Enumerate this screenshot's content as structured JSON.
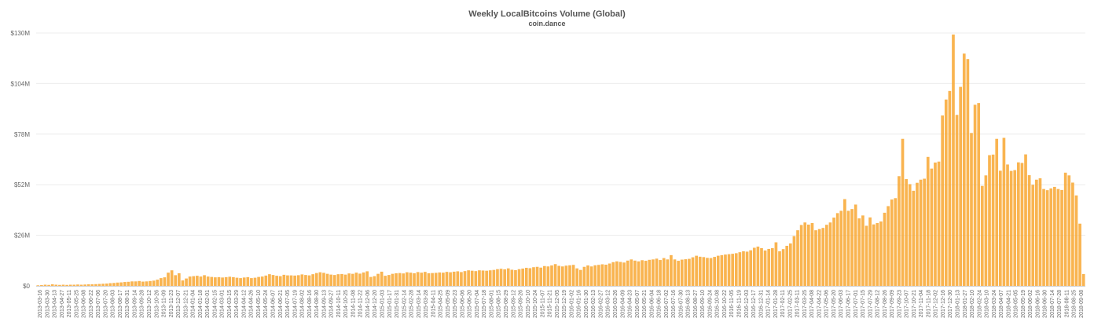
{
  "chart_data": {
    "type": "bar",
    "title": "Weekly LocalBitcoins Volume (Global)",
    "subtitle": "coin.dance",
    "xlabel": "",
    "ylabel": "",
    "ylim": [
      0,
      130
    ],
    "y_unit": "USD millions",
    "yticks": [
      "$0",
      "$26M",
      "$52M",
      "$78M",
      "$104M",
      "$130M"
    ],
    "bar_color": "#f8a731",
    "grid": true,
    "legend": "none",
    "x_tick_labels": [
      "2013-03-16",
      "2013-03-30",
      "2013-04-13",
      "2013-04-27",
      "2013-05-11",
      "2013-05-25",
      "2013-06-08",
      "2013-06-22",
      "2013-07-06",
      "2013-07-20",
      "2013-08-03",
      "2013-08-17",
      "2013-08-31",
      "2013-09-14",
      "2013-09-28",
      "2013-10-12",
      "2013-10-26",
      "2013-11-09",
      "2013-11-23",
      "2013-12-07",
      "2013-12-21",
      "2014-01-04",
      "2014-01-18",
      "2014-02-01",
      "2014-02-15",
      "2014-03-01",
      "2014-03-15",
      "2014-03-29",
      "2014-04-12",
      "2014-04-26",
      "2014-05-10",
      "2014-05-24",
      "2014-06-07",
      "2014-06-21",
      "2014-07-05",
      "2014-07-19",
      "2014-08-02",
      "2014-08-16",
      "2014-08-30",
      "2014-09-13",
      "2014-09-27",
      "2014-10-11",
      "2014-10-25",
      "2014-11-08",
      "2014-11-22",
      "2014-12-06",
      "2014-12-20",
      "2015-01-03",
      "2015-01-17",
      "2015-01-31",
      "2015-02-14",
      "2015-02-28",
      "2015-03-14",
      "2015-03-28",
      "2015-04-11",
      "2015-04-25",
      "2015-05-09",
      "2015-05-23",
      "2015-06-06",
      "2015-06-20",
      "2015-07-04",
      "2015-07-18",
      "2015-08-01",
      "2015-08-15",
      "2015-08-29",
      "2015-09-12",
      "2015-09-26",
      "2015-10-10",
      "2015-10-24",
      "2015-11-07",
      "2015-11-21",
      "2015-12-05",
      "2015-12-19",
      "2016-01-02",
      "2016-01-16",
      "2016-01-30",
      "2016-02-13",
      "2016-02-27",
      "2016-03-12",
      "2016-03-26",
      "2016-04-09",
      "2016-04-23",
      "2016-05-07",
      "2016-05-21",
      "2016-06-04",
      "2016-06-18",
      "2016-07-02",
      "2016-07-16",
      "2016-07-30",
      "2016-08-13",
      "2016-08-27",
      "2016-09-10",
      "2016-09-24",
      "2016-10-08",
      "2016-10-22",
      "2016-11-05",
      "2016-11-19",
      "2016-12-03",
      "2016-12-17",
      "2016-12-31",
      "2017-01-14",
      "2017-01-28",
      "2017-02-11",
      "2017-02-25",
      "2017-03-11",
      "2017-03-25",
      "2017-04-08",
      "2017-04-22",
      "2017-05-06",
      "2017-05-20",
      "2017-06-03",
      "2017-06-17",
      "2017-07-01",
      "2017-07-15",
      "2017-07-29",
      "2017-08-12",
      "2017-08-26",
      "2017-09-09",
      "2017-09-23",
      "2017-10-07",
      "2017-10-21",
      "2017-11-04",
      "2017-11-18",
      "2017-12-02",
      "2017-12-16",
      "2017-12-30",
      "2018-01-13",
      "2018-01-27",
      "2018-02-10",
      "2018-02-24",
      "2018-03-10",
      "2018-03-24",
      "2018-04-07",
      "2018-04-21",
      "2018-05-05",
      "2018-05-19",
      "2018-06-02",
      "2018-06-16",
      "2018-06-30",
      "2018-07-14",
      "2018-07-28",
      "2018-08-11",
      "2018-08-25",
      "2018-09-08"
    ],
    "values": [
      0.3,
      0.4,
      0.6,
      0.5,
      0.8,
      0.6,
      0.5,
      0.6,
      0.5,
      0.6,
      0.6,
      0.7,
      0.6,
      0.7,
      0.8,
      0.8,
      0.9,
      1.0,
      1.1,
      1.2,
      1.4,
      1.5,
      1.7,
      1.8,
      2.0,
      2.1,
      2.3,
      2.3,
      2.5,
      2.2,
      2.3,
      2.5,
      2.7,
      3.2,
      4.0,
      4.4,
      6.8,
      8.0,
      5.5,
      6.5,
      2.8,
      3.8,
      4.8,
      5.0,
      5.2,
      4.8,
      5.5,
      4.8,
      4.6,
      4.4,
      4.5,
      4.3,
      4.5,
      4.7,
      4.5,
      4.2,
      4.0,
      4.3,
      4.5,
      4.0,
      4.2,
      4.6,
      4.8,
      5.3,
      6.0,
      5.6,
      5.2,
      5.0,
      5.7,
      5.4,
      5.4,
      5.3,
      5.5,
      5.9,
      5.6,
      5.4,
      6.0,
      6.6,
      7.0,
      6.7,
      6.2,
      5.8,
      5.6,
      6.0,
      6.1,
      5.8,
      6.4,
      6.2,
      6.8,
      6.3,
      6.9,
      7.5,
      4.6,
      5.0,
      6.2,
      7.3,
      5.2,
      5.6,
      6.2,
      6.5,
      6.6,
      6.4,
      7.0,
      6.8,
      6.5,
      7.1,
      6.8,
      7.2,
      6.5,
      6.6,
      6.7,
      6.9,
      6.8,
      7.2,
      7.0,
      7.3,
      7.5,
      7.1,
      7.6,
      8.0,
      7.8,
      7.6,
      8.0,
      7.9,
      7.8,
      8.0,
      8.2,
      8.6,
      8.8,
      8.5,
      9.0,
      8.3,
      8.1,
      8.6,
      8.9,
      9.3,
      9.1,
      9.6,
      9.8,
      9.4,
      10.2,
      10.0,
      10.5,
      11.2,
      10.3,
      10.0,
      10.4,
      10.6,
      10.8,
      9.0,
      8.2,
      9.8,
      10.5,
      10.0,
      10.6,
      10.8,
      11.1,
      10.9,
      11.5,
      12.2,
      12.6,
      12.3,
      12.0,
      13.0,
      13.6,
      13.0,
      12.6,
      13.2,
      12.9,
      13.4,
      13.6,
      14.0,
      13.3,
      14.3,
      13.6,
      15.8,
      13.6,
      12.9,
      13.5,
      13.7,
      13.9,
      14.7,
      15.5,
      15.0,
      14.8,
      14.4,
      14.3,
      14.9,
      15.5,
      15.8,
      16.1,
      16.3,
      16.5,
      16.8,
      17.3,
      17.8,
      17.6,
      18.3,
      19.6,
      20.2,
      19.4,
      18.2,
      19.0,
      19.4,
      22.4,
      17.8,
      18.9,
      20.6,
      21.8,
      25.6,
      28.6,
      31.3,
      32.6,
      31.5,
      32.3,
      28.6,
      29.2,
      29.8,
      31.4,
      32.6,
      35.1,
      37.4,
      38.6,
      44.6,
      38.6,
      39.5,
      41.8,
      34.7,
      36.2,
      30.9,
      35.2,
      31.6,
      32.3,
      33.1,
      37.6,
      41.0,
      44.4,
      45.1,
      56.4,
      75.6,
      54.9,
      52.3,
      48.9,
      53.0,
      54.6,
      55.1,
      66.3,
      60.3,
      63.4,
      63.9,
      87.6,
      95.8,
      100.2,
      129.2,
      87.9,
      102.3,
      119.4,
      116.6,
      78.6,
      93.1,
      94.0,
      51.4,
      56.8,
      67.2,
      67.5,
      75.6,
      59.2,
      76.1,
      62.4,
      59.1,
      59.5,
      63.5,
      63.2,
      67.6,
      56.9,
      52.0,
      54.6,
      55.3,
      49.8,
      49.2,
      50.1,
      50.9,
      49.8,
      49.3,
      58.2,
      56.8,
      53.1,
      46.5,
      32.0,
      6.1
    ]
  }
}
